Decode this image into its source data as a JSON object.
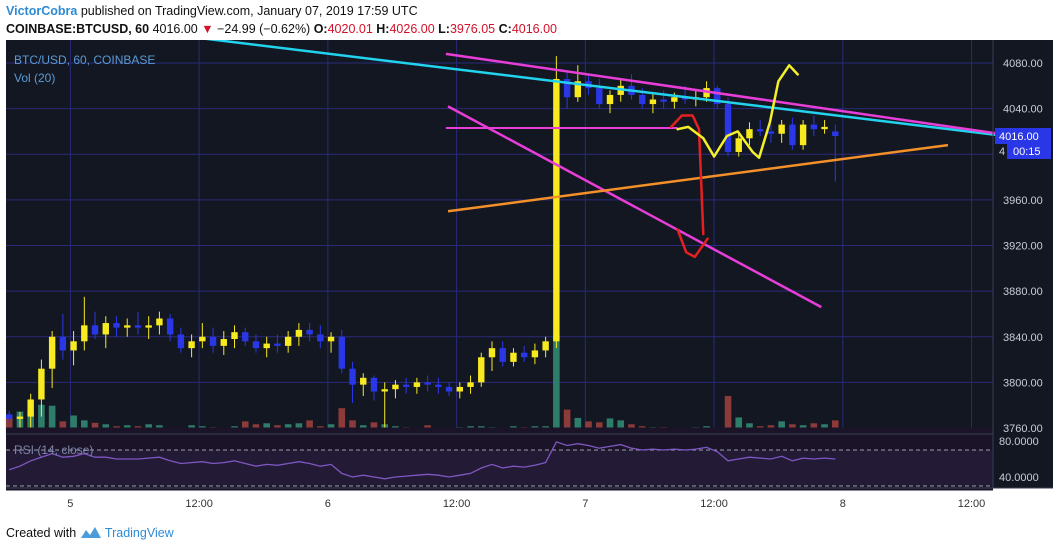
{
  "header": {
    "author": "VictorCobra",
    "published_text": "published on TradingView.com, January 07, 2019 17:59 UTC"
  },
  "ticker_bar": {
    "symbol": "COINBASE:BTCUSD, 60",
    "last": "4016.00",
    "change": "−24.99 (−0.62%)",
    "open_label": "O:",
    "open": "4020.01",
    "high_label": "H:",
    "high": "4026.00",
    "low_label": "L:",
    "low": "3976.05",
    "close_label": "C:",
    "close": "4016.00"
  },
  "legend": {
    "symbol_line": "BTC/USD, 60, COINBASE",
    "volume_line": "Vol (20)",
    "rsi_line": "RSI (14, close)"
  },
  "price_axis": {
    "labels": [
      "4080.00",
      "4040.00",
      "3960.00",
      "3920.00",
      "3880.00",
      "3840.00",
      "3800.00",
      "3760.00"
    ],
    "last_price_tag": "4016.00",
    "countdown_tag": "00:15",
    "partial_label": "4"
  },
  "rsi_axis": {
    "labels": [
      "80.0000",
      "40.0000"
    ]
  },
  "time_axis": {
    "labels": [
      "5",
      "12:00",
      "6",
      "12:00",
      "7",
      "12:00",
      "8",
      "12:00"
    ]
  },
  "footer": {
    "created_with": "Created with",
    "brand": "TradingView"
  },
  "colors": {
    "background": "#131722",
    "grid": "#2a2a78",
    "up": "#f7ea21",
    "down": "#2a37e6",
    "vol_up": "#2e7d6b",
    "vol_down": "#8c3a3a",
    "rsi": "#7e57c2",
    "cyan_line": "#22d3ee",
    "magenta_line": "#e83ed8",
    "orange_line": "#f4902a",
    "red_arrow": "#e52020",
    "yellow_path": "#f4f02a",
    "accent_blue": "#2d8bd6"
  },
  "chart_data": {
    "type": "candlestick",
    "title": "BTC/USD, 60, COINBASE",
    "y_range": [
      3740,
      4100
    ],
    "rsi_range": [
      25,
      95
    ],
    "x_range_hours": [
      0,
      92
    ],
    "x_ticks_hours": [
      6,
      18,
      30,
      42,
      54,
      66,
      78,
      90
    ],
    "price_ticks": [
      4080,
      4040,
      3960,
      3920,
      3880,
      3840,
      3800,
      3760
    ],
    "rsi_ticks": [
      80,
      40
    ],
    "candles": [
      [
        3772,
        3775,
        3765,
        3768
      ],
      [
        3768,
        3774,
        3760,
        3770
      ],
      [
        3770,
        3790,
        3752,
        3785
      ],
      [
        3785,
        3820,
        3770,
        3812
      ],
      [
        3812,
        3845,
        3795,
        3840
      ],
      [
        3840,
        3860,
        3820,
        3828
      ],
      [
        3828,
        3845,
        3815,
        3836
      ],
      [
        3836,
        3875,
        3828,
        3850
      ],
      [
        3850,
        3862,
        3838,
        3842
      ],
      [
        3842,
        3858,
        3830,
        3852
      ],
      [
        3852,
        3858,
        3840,
        3848
      ],
      [
        3848,
        3856,
        3840,
        3850
      ],
      [
        3850,
        3862,
        3842,
        3848
      ],
      [
        3848,
        3858,
        3838,
        3850
      ],
      [
        3850,
        3862,
        3842,
        3856
      ],
      [
        3856,
        3860,
        3836,
        3842
      ],
      [
        3842,
        3848,
        3826,
        3830
      ],
      [
        3830,
        3842,
        3822,
        3836
      ],
      [
        3836,
        3852,
        3830,
        3840
      ],
      [
        3840,
        3848,
        3826,
        3832
      ],
      [
        3832,
        3845,
        3824,
        3838
      ],
      [
        3838,
        3850,
        3830,
        3844
      ],
      [
        3844,
        3848,
        3832,
        3836
      ],
      [
        3836,
        3842,
        3826,
        3830
      ],
      [
        3830,
        3840,
        3822,
        3834
      ],
      [
        3834,
        3842,
        3826,
        3832
      ],
      [
        3832,
        3845,
        3826,
        3840
      ],
      [
        3840,
        3852,
        3832,
        3846
      ],
      [
        3846,
        3852,
        3836,
        3842
      ],
      [
        3842,
        3850,
        3830,
        3836
      ],
      [
        3836,
        3844,
        3826,
        3840
      ],
      [
        3840,
        3846,
        3808,
        3812
      ],
      [
        3812,
        3818,
        3782,
        3798
      ],
      [
        3798,
        3808,
        3788,
        3804
      ],
      [
        3804,
        3806,
        3784,
        3792
      ],
      [
        3792,
        3800,
        3760,
        3794
      ],
      [
        3794,
        3802,
        3786,
        3798
      ],
      [
        3798,
        3804,
        3790,
        3796
      ],
      [
        3796,
        3804,
        3790,
        3800
      ],
      [
        3800,
        3806,
        3792,
        3798
      ],
      [
        3798,
        3804,
        3790,
        3796
      ],
      [
        3796,
        3800,
        3788,
        3792
      ],
      [
        3792,
        3800,
        3786,
        3796
      ],
      [
        3796,
        3806,
        3790,
        3800
      ],
      [
        3800,
        3826,
        3796,
        3822
      ],
      [
        3822,
        3836,
        3810,
        3830
      ],
      [
        3830,
        3836,
        3814,
        3818
      ],
      [
        3818,
        3830,
        3814,
        3826
      ],
      [
        3826,
        3832,
        3818,
        3822
      ],
      [
        3822,
        3834,
        3816,
        3828
      ],
      [
        3828,
        3840,
        3822,
        3836
      ],
      [
        3836,
        4086,
        3830,
        4066
      ],
      [
        4066,
        4072,
        4040,
        4050
      ],
      [
        4050,
        4078,
        4046,
        4064
      ],
      [
        4064,
        4070,
        4052,
        4058
      ],
      [
        4058,
        4066,
        4040,
        4044
      ],
      [
        4044,
        4056,
        4036,
        4052
      ],
      [
        4052,
        4066,
        4046,
        4060
      ],
      [
        4060,
        4070,
        4048,
        4052
      ],
      [
        4052,
        4058,
        4040,
        4044
      ],
      [
        4044,
        4054,
        4036,
        4048
      ],
      [
        4048,
        4056,
        4040,
        4046
      ],
      [
        4046,
        4054,
        4040,
        4050
      ],
      [
        4050,
        4060,
        4044,
        4048
      ],
      [
        4048,
        4056,
        4042,
        4050
      ],
      [
        4050,
        4064,
        4046,
        4058
      ],
      [
        4058,
        4060,
        4040,
        4044
      ],
      [
        4044,
        4050,
        3998,
        4002
      ],
      [
        4002,
        4018,
        3998,
        4014
      ],
      [
        4014,
        4028,
        4008,
        4022
      ],
      [
        4022,
        4030,
        4016,
        4020
      ],
      [
        4020,
        4026,
        4010,
        4018
      ],
      [
        4018,
        4030,
        4010,
        4026
      ],
      [
        4026,
        4032,
        4004,
        4008
      ],
      [
        4008,
        4030,
        4004,
        4026
      ],
      [
        4026,
        4034,
        4016,
        4022
      ],
      [
        4022,
        4030,
        4018,
        4024
      ],
      [
        4020,
        4026,
        3976,
        4016
      ]
    ],
    "volume": [
      38,
      48,
      45,
      62,
      60,
      28,
      40,
      30,
      25,
      22,
      18,
      20,
      18,
      22,
      20,
      15,
      14,
      20,
      18,
      16,
      14,
      18,
      28,
      22,
      24,
      20,
      22,
      24,
      30,
      18,
      22,
      55,
      30,
      20,
      26,
      22,
      18,
      16,
      14,
      20,
      14,
      14,
      16,
      18,
      18,
      16,
      14,
      18,
      16,
      18,
      18,
      205,
      52,
      35,
      28,
      26,
      34,
      30,
      22,
      18,
      16,
      16,
      14,
      14,
      16,
      18,
      14,
      80,
      36,
      24,
      18,
      20,
      28,
      22,
      20,
      24,
      22,
      30
    ],
    "rsi": [
      48,
      52,
      58,
      62,
      66,
      62,
      63,
      66,
      62,
      62,
      60,
      60,
      60,
      61,
      62,
      58,
      55,
      56,
      57,
      55,
      56,
      58,
      55,
      52,
      54,
      53,
      55,
      57,
      55,
      52,
      54,
      44,
      40,
      42,
      40,
      38,
      40,
      41,
      42,
      43,
      42,
      40,
      42,
      44,
      50,
      54,
      50,
      52,
      51,
      53,
      56,
      79,
      75,
      77,
      75,
      72,
      74,
      76,
      72,
      70,
      71,
      70,
      71,
      70,
      71,
      73,
      68,
      58,
      60,
      62,
      61,
      60,
      63,
      58,
      61,
      60,
      61,
      60
    ],
    "drawings": {
      "cyan_trendline": [
        [
          -10,
          4134
        ],
        [
          94,
          4015
        ]
      ],
      "magenta_upper": [
        [
          41.0,
          4088
        ],
        [
          94,
          4016
        ]
      ],
      "magenta_lower": [
        [
          41.2,
          4042
        ],
        [
          76.0,
          3866
        ]
      ],
      "magenta_horizontal": [
        [
          41.0,
          4023
        ],
        [
          62.6,
          4023
        ]
      ],
      "orange_support": [
        [
          41.2,
          3950
        ],
        [
          87.8,
          4008
        ]
      ],
      "red_path": [
        [
          62.0,
          4024
        ],
        [
          63.0,
          4034
        ],
        [
          64.0,
          4034
        ],
        [
          64.6,
          4022
        ],
        [
          65.0,
          3930
        ]
      ],
      "red_hook": [
        [
          62.6,
          3934
        ],
        [
          63.4,
          3914
        ],
        [
          64.2,
          3910
        ],
        [
          65.4,
          3926
        ]
      ],
      "yellow_path": [
        [
          62.6,
          4022
        ],
        [
          63.6,
          4024
        ],
        [
          65.0,
          4014
        ],
        [
          66.0,
          3998
        ],
        [
          67.2,
          4016
        ],
        [
          68.2,
          4020
        ],
        [
          69.6,
          4002
        ],
        [
          70.2,
          3997
        ],
        [
          71.2,
          4028
        ],
        [
          72.0,
          4064
        ],
        [
          73.0,
          4078
        ],
        [
          73.8,
          4070
        ]
      ]
    }
  }
}
